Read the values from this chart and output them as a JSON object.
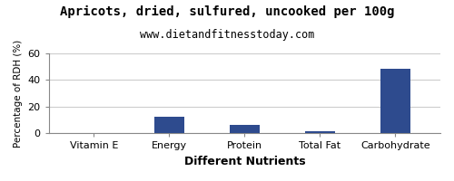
{
  "title": "Apricots, dried, sulfured, uncooked per 100g",
  "subtitle": "www.dietandfitnesstoday.com",
  "xlabel": "Different Nutrients",
  "ylabel": "Percentage of RDH (%)",
  "categories": [
    "Vitamin E",
    "Energy",
    "Protein",
    "Total Fat",
    "Carbohydrate"
  ],
  "values": [
    0.5,
    12.5,
    6.5,
    1.5,
    48.5
  ],
  "bar_color": "#2e4b8e",
  "ylim": [
    0,
    60
  ],
  "yticks": [
    0,
    20,
    40,
    60
  ],
  "background_color": "#ffffff",
  "title_fontsize": 10,
  "subtitle_fontsize": 8.5,
  "xlabel_fontsize": 9,
  "ylabel_fontsize": 7.5,
  "tick_fontsize": 8
}
